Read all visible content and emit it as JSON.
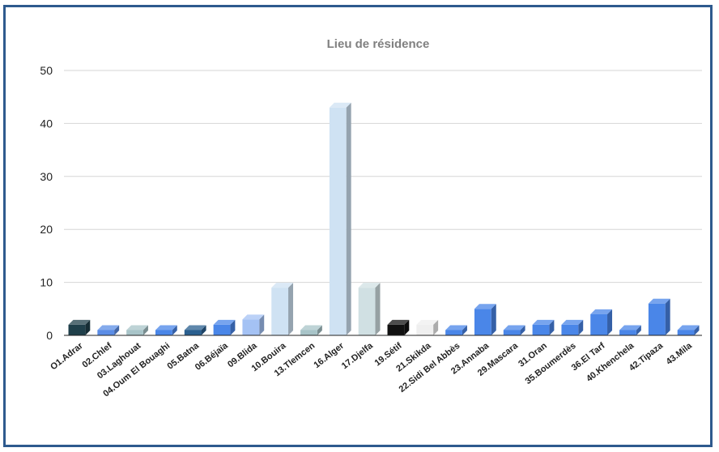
{
  "chart_data": {
    "type": "bar",
    "title": "Lieu de résidence",
    "xlabel": "",
    "ylabel": "",
    "ylim": [
      0,
      50
    ],
    "yticks": [
      0,
      10,
      20,
      30,
      40,
      50
    ],
    "grid": true,
    "legend": "none",
    "three_d": true,
    "categories": [
      "O1.Adrar",
      "02.Chlef",
      "03.Laghouat",
      "04.Oum El Bouaghi",
      "05.Batna",
      "06.Béjaïa",
      "09.Blida",
      "10.Bouira",
      "13.Tlemcen",
      "16.Alger",
      "17.Djelfa",
      "19.Sétif",
      "21.Skikda",
      "22.Sidi Bel Abbès",
      "23.Annaba",
      "29.Mascara",
      "31.Oran",
      "35.Boumerdès",
      "36.El Tarf",
      "40.Khenchela",
      "42.Tipaza",
      "43.Mila"
    ],
    "values": [
      2,
      1,
      1,
      1,
      1,
      2,
      3,
      9,
      1,
      43,
      9,
      2,
      2,
      1,
      5,
      1,
      2,
      2,
      4,
      1,
      6,
      1
    ],
    "colors": [
      "#1f3f4a",
      "#5b8de6",
      "#a8c4c8",
      "#4a86e8",
      "#2a5f8f",
      "#4a86e8",
      "#a4c2f4",
      "#cfe2f3",
      "#a8c4c8",
      "#cfe2f3",
      "#d0e0e3",
      "#111111",
      "#efefef",
      "#4a86e8",
      "#4a86e8",
      "#4a86e8",
      "#4a86e8",
      "#4a86e8",
      "#4a86e8",
      "#4a86e8",
      "#4a86e8",
      "#4a86e8"
    ]
  }
}
